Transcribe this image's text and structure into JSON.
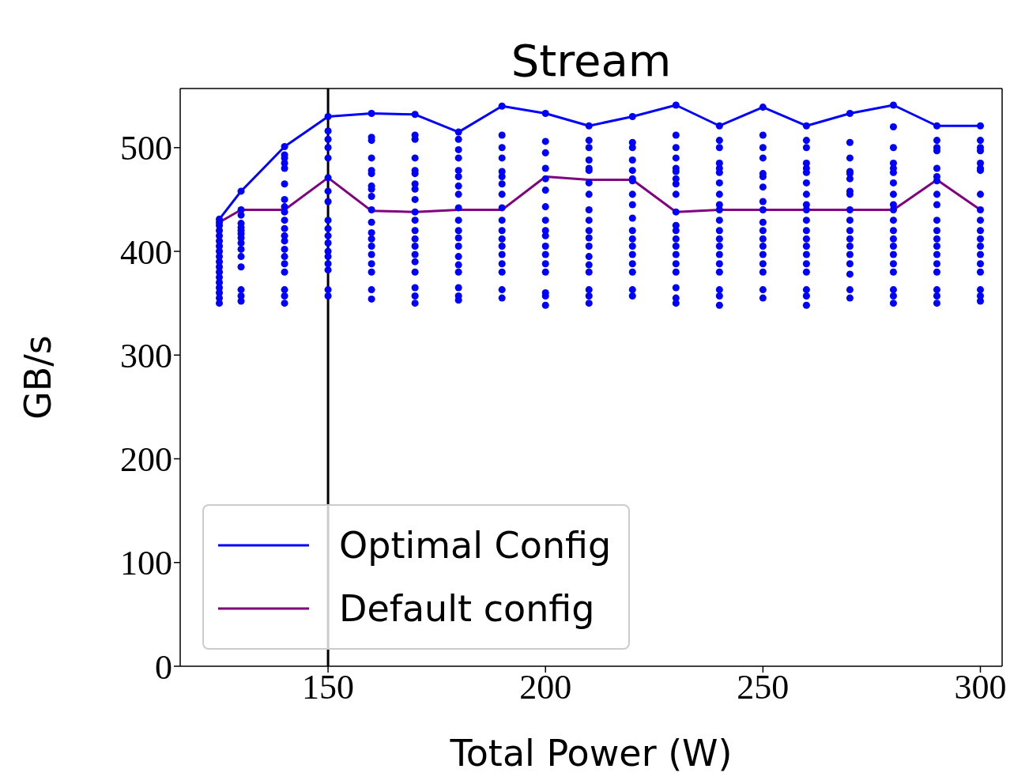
{
  "chart_data": {
    "type": "scatter",
    "title": "Stream",
    "xlabel": "Total Power (W)",
    "ylabel": "GB/s",
    "xlim": [
      116,
      305
    ],
    "xticks": [
      150,
      200,
      250,
      300
    ],
    "ylim": [
      0,
      557
    ],
    "yticks": [
      0,
      100,
      200,
      300,
      400,
      500
    ],
    "legend": "bottom left",
    "ref_lines": [
      {
        "axis": "x",
        "value": 150,
        "color": "#000000"
      }
    ],
    "series": [
      {
        "color": "#0000ff",
        "marker": "circle",
        "x": [
          125,
          125,
          125,
          125,
          125,
          125,
          125,
          125,
          125,
          125,
          125,
          125,
          125,
          125,
          125,
          125,
          125,
          125,
          130,
          130,
          130,
          130,
          130,
          130,
          130,
          130,
          130,
          130,
          130,
          130,
          130,
          130,
          130,
          140,
          140,
          140,
          140,
          140,
          140,
          140,
          140,
          140,
          140,
          140,
          140,
          140,
          140,
          140,
          140,
          140,
          140,
          140,
          140,
          150,
          150,
          150,
          150,
          150,
          150,
          150,
          150,
          150,
          150,
          150,
          150,
          150,
          150,
          150,
          150,
          150,
          150,
          160,
          160,
          160,
          160,
          160,
          160,
          160,
          160,
          160,
          160,
          160,
          160,
          160,
          160,
          160,
          160,
          160,
          160,
          160,
          170,
          170,
          170,
          170,
          170,
          170,
          170,
          170,
          170,
          170,
          170,
          170,
          170,
          170,
          170,
          170,
          170,
          170,
          170,
          170,
          180,
          180,
          180,
          180,
          180,
          180,
          180,
          180,
          180,
          180,
          180,
          180,
          180,
          180,
          180,
          180,
          180,
          180,
          180,
          190,
          190,
          190,
          190,
          190,
          190,
          190,
          190,
          190,
          190,
          190,
          190,
          190,
          190,
          190,
          190,
          190,
          190,
          200,
          200,
          200,
          200,
          200,
          200,
          200,
          200,
          200,
          200,
          200,
          200,
          200,
          200,
          200,
          200,
          200,
          210,
          210,
          210,
          210,
          210,
          210,
          210,
          210,
          210,
          210,
          210,
          210,
          210,
          210,
          210,
          210,
          210,
          210,
          210,
          220,
          220,
          220,
          220,
          220,
          220,
          220,
          220,
          220,
          220,
          220,
          220,
          220,
          220,
          220,
          220,
          220,
          220,
          230,
          230,
          230,
          230,
          230,
          230,
          230,
          230,
          230,
          230,
          230,
          230,
          230,
          230,
          230,
          230,
          230,
          230,
          230,
          230,
          240,
          240,
          240,
          240,
          240,
          240,
          240,
          240,
          240,
          240,
          240,
          240,
          240,
          240,
          240,
          240,
          240,
          240,
          240,
          240,
          250,
          250,
          250,
          250,
          250,
          250,
          250,
          250,
          250,
          250,
          250,
          250,
          250,
          250,
          250,
          250,
          250,
          250,
          260,
          260,
          260,
          260,
          260,
          260,
          260,
          260,
          260,
          260,
          260,
          260,
          260,
          260,
          260,
          260,
          260,
          260,
          260,
          260,
          270,
          270,
          270,
          270,
          270,
          270,
          270,
          270,
          270,
          270,
          270,
          270,
          270,
          270,
          270,
          270,
          270,
          270,
          280,
          280,
          280,
          280,
          280,
          280,
          280,
          280,
          280,
          280,
          280,
          280,
          280,
          280,
          280,
          280,
          280,
          280,
          280,
          280,
          290,
          290,
          290,
          290,
          290,
          290,
          290,
          290,
          290,
          290,
          290,
          290,
          290,
          290,
          290,
          290,
          290,
          290,
          290,
          300,
          300,
          300,
          300,
          300,
          300,
          300,
          300,
          300,
          300,
          300,
          300,
          300,
          300,
          300,
          300,
          300,
          300,
          300
        ],
        "values": [
          431,
          428,
          425,
          420,
          415,
          410,
          405,
          400,
          395,
          390,
          385,
          380,
          375,
          370,
          365,
          360,
          355,
          350,
          458,
          440,
          435,
          427,
          423,
          420,
          417,
          413,
          408,
          402,
          395,
          385,
          363,
          357,
          352,
          501,
          493,
          490,
          485,
          480,
          465,
          450,
          443,
          438,
          430,
          422,
          415,
          410,
          402,
          395,
          388,
          380,
          363,
          357,
          350,
          530,
          516,
          508,
          500,
          490,
          471,
          458,
          448,
          430,
          422,
          415,
          408,
          400,
          395,
          388,
          382,
          363,
          357,
          533,
          510,
          507,
          490,
          478,
          475,
          463,
          460,
          453,
          440,
          428,
          418,
          412,
          405,
          397,
          388,
          380,
          363,
          354,
          532,
          512,
          508,
          490,
          478,
          475,
          465,
          460,
          450,
          438,
          430,
          420,
          412,
          405,
          397,
          390,
          380,
          365,
          357,
          350,
          515,
          508,
          498,
          490,
          478,
          472,
          463,
          455,
          442,
          430,
          420,
          413,
          405,
          395,
          387,
          380,
          365,
          357,
          353,
          540,
          512,
          500,
          490,
          477,
          472,
          465,
          455,
          442,
          430,
          420,
          412,
          405,
          397,
          388,
          380,
          363,
          355,
          533,
          506,
          495,
          480,
          470,
          459,
          443,
          430,
          420,
          415,
          405,
          397,
          388,
          380,
          360,
          357,
          348,
          521,
          507,
          500,
          488,
          480,
          478,
          466,
          455,
          440,
          430,
          420,
          413,
          405,
          395,
          387,
          380,
          363,
          357,
          350,
          530,
          505,
          500,
          488,
          478,
          470,
          468,
          455,
          445,
          432,
          420,
          412,
          405,
          397,
          388,
          380,
          363,
          357,
          541,
          512,
          500,
          490,
          480,
          477,
          470,
          465,
          455,
          438,
          425,
          420,
          412,
          405,
          397,
          388,
          380,
          365,
          355,
          350,
          521,
          507,
          500,
          485,
          480,
          476,
          466,
          455,
          445,
          440,
          430,
          420,
          412,
          405,
          397,
          388,
          380,
          363,
          357,
          348,
          539,
          512,
          500,
          490,
          475,
          472,
          462,
          448,
          440,
          428,
          420,
          412,
          405,
          397,
          388,
          380,
          363,
          355,
          521,
          507,
          500,
          485,
          480,
          476,
          466,
          455,
          445,
          440,
          430,
          420,
          412,
          405,
          397,
          388,
          380,
          363,
          357,
          348,
          533,
          505,
          490,
          477,
          475,
          470,
          458,
          455,
          440,
          430,
          420,
          412,
          405,
          397,
          388,
          378,
          363,
          355,
          541,
          520,
          500,
          485,
          480,
          476,
          466,
          455,
          445,
          440,
          430,
          420,
          412,
          405,
          397,
          388,
          380,
          363,
          357,
          350,
          521,
          507,
          500,
          497,
          480,
          472,
          468,
          455,
          445,
          430,
          420,
          412,
          405,
          397,
          388,
          380,
          363,
          357,
          350,
          521,
          507,
          500,
          497,
          485,
          480,
          478,
          455,
          440,
          430,
          420,
          412,
          405,
          397,
          388,
          380,
          363,
          357,
          352
        ]
      },
      {
        "type": "line",
        "name": "Optimal Config",
        "color": "#0000ff",
        "marker": "none",
        "x": [
          125,
          130,
          140,
          150,
          160,
          170,
          180,
          190,
          200,
          210,
          220,
          230,
          240,
          250,
          260,
          270,
          280,
          290,
          300
        ],
        "values": [
          431,
          458,
          501,
          530,
          533,
          532,
          515,
          540,
          533,
          521,
          530,
          541,
          521,
          539,
          521,
          533,
          541,
          521,
          521
        ]
      },
      {
        "type": "line",
        "name": "Default config",
        "color": "#800080",
        "marker": "none",
        "x": [
          125,
          130,
          140,
          150,
          160,
          170,
          180,
          190,
          200,
          210,
          220,
          230,
          240,
          250,
          260,
          270,
          280,
          290,
          300
        ],
        "values": [
          428,
          440,
          440,
          471,
          439,
          438,
          440,
          440,
          472,
          469,
          469,
          438,
          440,
          440,
          440,
          440,
          440,
          469,
          440
        ]
      }
    ]
  }
}
